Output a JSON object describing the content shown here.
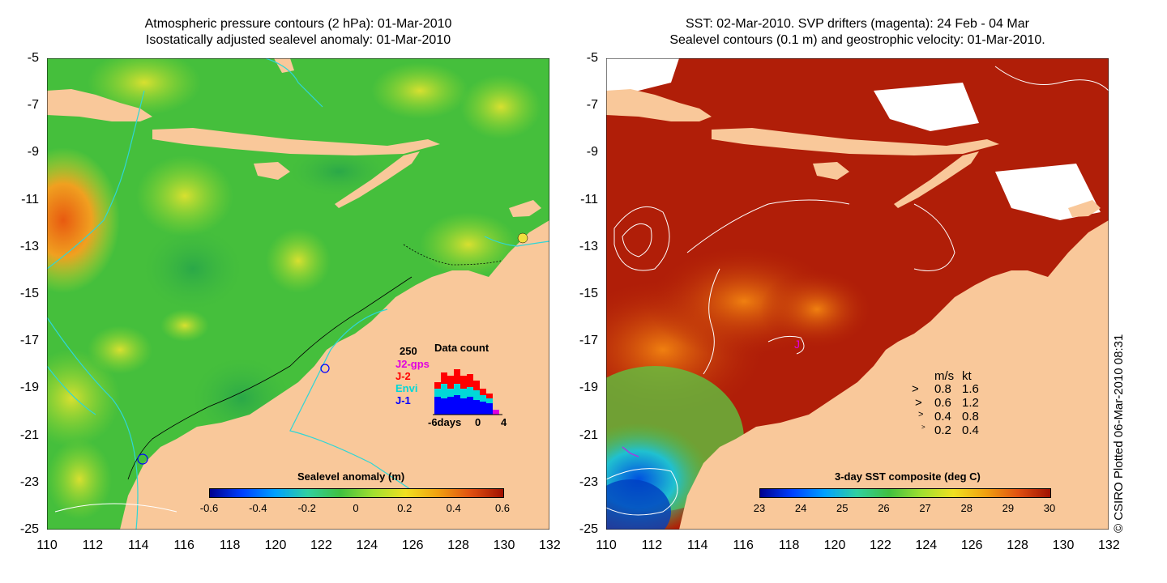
{
  "left_panel": {
    "title_line1": "Atmospheric pressure contours (2 hPa): 01-Mar-2010",
    "title_line2": "Isostatically adjusted sealevel anomaly: 01-Mar-2010",
    "colorbar": {
      "title": "Sealevel anomaly (m)",
      "ticks": [
        "-0.6",
        "-0.4",
        "-0.2",
        "0",
        "0.2",
        "0.4",
        "0.6"
      ]
    },
    "data_count": {
      "title": "Data count",
      "max_label": "250",
      "series": [
        {
          "name": "J2-gps",
          "color": "#e000e0"
        },
        {
          "name": "J-2",
          "color": "#ff0000"
        },
        {
          "name": "Envi",
          "color": "#00d8d8"
        },
        {
          "name": "J-1",
          "color": "#0000ff"
        }
      ],
      "x_left": "-6days",
      "x_mid": "0",
      "x_right": "4"
    }
  },
  "right_panel": {
    "title_line1": "SST: 02-Mar-2010. SVP drifters (magenta): 24 Feb - 04 Mar",
    "title_line2": "Sealevel contours (0.1 m) and geostrophic velocity: 01-Mar-2010.",
    "colorbar": {
      "title": "3-day SST composite (deg C)",
      "ticks": [
        "23",
        "24",
        "25",
        "26",
        "27",
        "28",
        "29",
        "30"
      ]
    },
    "velocity_legend": {
      "header_ms": "m/s",
      "header_kt": "kt",
      "rows": [
        {
          "ms": "0.8",
          "kt": "1.6"
        },
        {
          "ms": "0.6",
          "kt": "1.2"
        },
        {
          "ms": "0.4",
          "kt": "0.8"
        },
        {
          "ms": "0.2",
          "kt": "0.4"
        }
      ]
    },
    "drifter_label": "J"
  },
  "axes": {
    "y_ticks": [
      "-5",
      "-7",
      "-9",
      "-11",
      "-13",
      "-15",
      "-17",
      "-19",
      "-21",
      "-23",
      "-25"
    ],
    "x_ticks": [
      "110",
      "112",
      "114",
      "116",
      "118",
      "120",
      "122",
      "124",
      "126",
      "128",
      "130",
      "132"
    ]
  },
  "credit": "© CSIRO Plotted 06-Mar-2010 08:31",
  "colors": {
    "land": "#f9c89a",
    "ocean_left": "#4fc23a",
    "ocean_right": "#b01e08",
    "contour": "#2fd6d6"
  }
}
